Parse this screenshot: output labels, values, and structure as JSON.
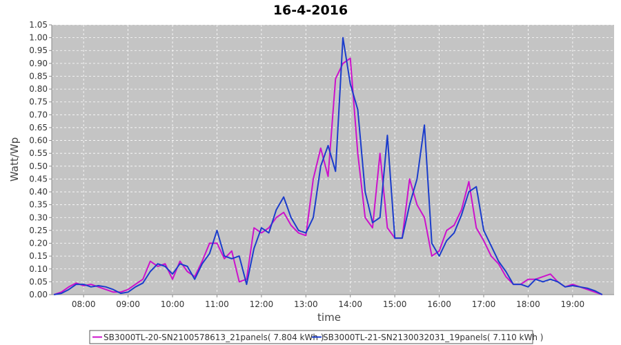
{
  "chart_data": {
    "type": "line",
    "title": "16-4-2016",
    "x_label": "time",
    "y_label": "Watt/Wp",
    "x": [
      440,
      450,
      460,
      470,
      480,
      490,
      500,
      510,
      520,
      530,
      540,
      550,
      560,
      570,
      580,
      590,
      600,
      610,
      620,
      630,
      640,
      650,
      660,
      670,
      680,
      690,
      700,
      710,
      720,
      730,
      740,
      750,
      760,
      770,
      780,
      790,
      800,
      810,
      820,
      830,
      840,
      850,
      860,
      870,
      880,
      890,
      900,
      910,
      920,
      930,
      940,
      950,
      960,
      970,
      980,
      990,
      1000,
      1010,
      1020,
      1030,
      1040,
      1050,
      1060,
      1070,
      1080,
      1090,
      1100,
      1110,
      1120,
      1130,
      1140,
      1150,
      1160,
      1170,
      1180
    ],
    "series": [
      {
        "name": "SB3000TL-20-SN2100578613_21panels( 7.804 kWh )",
        "color": "#cc11cc",
        "values": [
          0,
          0.01,
          0.03,
          0.045,
          0.035,
          0.04,
          0.03,
          0.02,
          0.01,
          0.01,
          0.02,
          0.04,
          0.06,
          0.13,
          0.11,
          0.12,
          0.06,
          0.13,
          0.09,
          0.07,
          0.13,
          0.2,
          0.2,
          0.14,
          0.17,
          0.05,
          0.06,
          0.26,
          0.24,
          0.26,
          0.3,
          0.32,
          0.27,
          0.24,
          0.23,
          0.45,
          0.57,
          0.46,
          0.84,
          0.9,
          0.92,
          0.55,
          0.3,
          0.26,
          0.55,
          0.26,
          0.22,
          0.22,
          0.45,
          0.35,
          0.3,
          0.15,
          0.17,
          0.25,
          0.27,
          0.33,
          0.44,
          0.26,
          0.21,
          0.15,
          0.12,
          0.07,
          0.04,
          0.04,
          0.06,
          0.06,
          0.07,
          0.08,
          0.05,
          0.03,
          0.04,
          0.03,
          0.02,
          0.01,
          0
        ]
      },
      {
        "name": "SB3000TL-21-SN2130032031_19panels( 7.110 kWh )",
        "color": "#1a3ccc",
        "values": [
          0,
          0.005,
          0.02,
          0.04,
          0.04,
          0.03,
          0.035,
          0.03,
          0.02,
          0.005,
          0.01,
          0.03,
          0.045,
          0.09,
          0.12,
          0.11,
          0.08,
          0.12,
          0.11,
          0.06,
          0.12,
          0.16,
          0.25,
          0.15,
          0.14,
          0.15,
          0.04,
          0.18,
          0.26,
          0.24,
          0.33,
          0.38,
          0.3,
          0.25,
          0.24,
          0.3,
          0.5,
          0.58,
          0.48,
          1.0,
          0.82,
          0.72,
          0.4,
          0.28,
          0.3,
          0.62,
          0.22,
          0.22,
          0.35,
          0.45,
          0.66,
          0.2,
          0.15,
          0.21,
          0.24,
          0.31,
          0.4,
          0.42,
          0.25,
          0.19,
          0.13,
          0.09,
          0.04,
          0.04,
          0.03,
          0.06,
          0.05,
          0.06,
          0.05,
          0.03,
          0.035,
          0.03,
          0.025,
          0.015,
          0
        ]
      }
    ],
    "xlim": [
      437,
      1196
    ],
    "xticks": [
      {
        "value": 480,
        "label": "08:00"
      },
      {
        "value": 540,
        "label": "09:00"
      },
      {
        "value": 600,
        "label": "10:00"
      },
      {
        "value": 660,
        "label": "11:00"
      },
      {
        "value": 720,
        "label": "12:00"
      },
      {
        "value": 780,
        "label": "13:00"
      },
      {
        "value": 840,
        "label": "14:00"
      },
      {
        "value": 900,
        "label": "15:00"
      },
      {
        "value": 960,
        "label": "16:00"
      },
      {
        "value": 1020,
        "label": "17:00"
      },
      {
        "value": 1080,
        "label": "18:00"
      },
      {
        "value": 1140,
        "label": "19:00"
      }
    ],
    "ylim": [
      0,
      1.05
    ],
    "yticks": [
      {
        "value": 0,
        "label": "0.00"
      },
      {
        "value": 0.05,
        "label": "0.05"
      },
      {
        "value": 0.1,
        "label": "0.10"
      },
      {
        "value": 0.15,
        "label": "0.15"
      },
      {
        "value": 0.2,
        "label": "0.20"
      },
      {
        "value": 0.25,
        "label": "0.25"
      },
      {
        "value": 0.3,
        "label": "0.30"
      },
      {
        "value": 0.35,
        "label": "0.35"
      },
      {
        "value": 0.4,
        "label": "0.40"
      },
      {
        "value": 0.45,
        "label": "0.45"
      },
      {
        "value": 0.5,
        "label": "0.50"
      },
      {
        "value": 0.55,
        "label": "0.55"
      },
      {
        "value": 0.6,
        "label": "0.60"
      },
      {
        "value": 0.65,
        "label": "0.65"
      },
      {
        "value": 0.7,
        "label": "0.70"
      },
      {
        "value": 0.75,
        "label": "0.75"
      },
      {
        "value": 0.8,
        "label": "0.80"
      },
      {
        "value": 0.85,
        "label": "0.85"
      },
      {
        "value": 0.9,
        "label": "0.90"
      },
      {
        "value": 0.95,
        "label": "0.95"
      },
      {
        "value": 1.0,
        "label": "1.00"
      },
      {
        "value": 1.05,
        "label": "1.05"
      }
    ],
    "grid": true,
    "legend": "bottom"
  }
}
